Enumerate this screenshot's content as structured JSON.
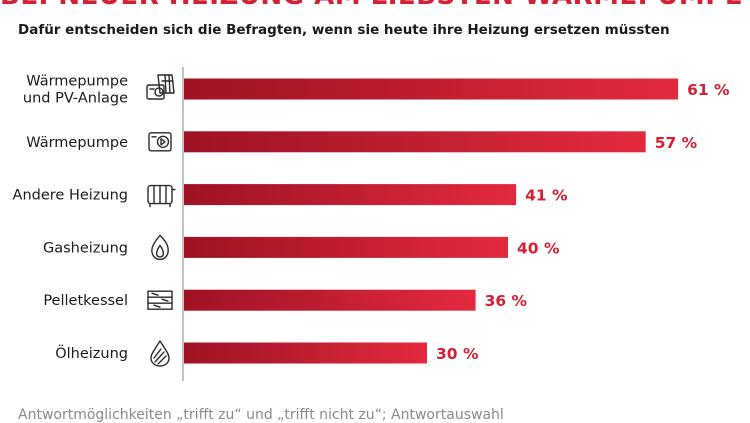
{
  "header": {
    "title": "BEI NEUER HEIZUNG AM LIEBSTEN WÄRMEPUMPE",
    "subtitle": "Dafür entscheiden sich die Befragten, wenn sie heute ihre Heizung ersetzen müssten"
  },
  "footnote": "Antwortmöglichkeiten „trifft zu“ und „trifft nicht zu“; Antwortauswahl",
  "colors": {
    "bar_start": "#9e1224",
    "bar_end": "#e32a3f",
    "value_text": "#d32034"
  },
  "chart_data": {
    "type": "bar",
    "orientation": "horizontal",
    "categories": [
      [
        "Wärmepumpe",
        "und PV-Anlage"
      ],
      [
        "Wärmepumpe"
      ],
      [
        "Andere Heizung"
      ],
      [
        "Gasheizung"
      ],
      [
        "Pelletkessel"
      ],
      [
        "Ölheizung"
      ]
    ],
    "values": [
      61,
      57,
      41,
      40,
      36,
      30
    ],
    "value_labels": [
      "61 %",
      "57 %",
      "41 %",
      "40 %",
      "36 %",
      "30 %"
    ],
    "icons": [
      "heatpump-solar-icon",
      "heatpump-icon",
      "radiator-icon",
      "flame-icon",
      "wood-pellet-icon",
      "oil-drop-icon"
    ],
    "xlim": [
      0,
      100
    ],
    "grid": false
  }
}
